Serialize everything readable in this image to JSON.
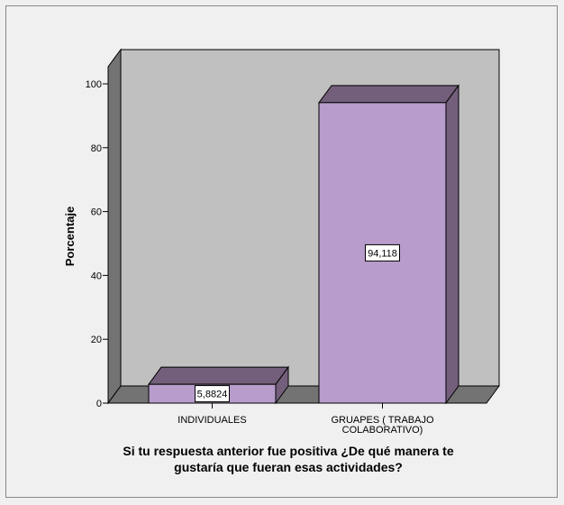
{
  "chart_data": {
    "type": "bar",
    "style": "3d",
    "categories": [
      "INDIVIDUALES",
      "GRUAPES ( TRABAJO COLABORATIVO)"
    ],
    "category_lines": [
      [
        "INDIVIDUALES"
      ],
      [
        "GRUAPES ( TRABAJO",
        "COLABORATIVO)"
      ]
    ],
    "values": [
      5.8824,
      94.118
    ],
    "data_labels": [
      "5,8824",
      "94,118"
    ],
    "xlabel": "Si tu respuesta anterior fue positiva ¿De qué manera te gustaría que fueran esas actividades?",
    "xlabel_lines": [
      "Si tu respuesta anterior fue positiva ¿De qué manera te",
      "gustaría que fueran esas actividades?"
    ],
    "ylabel": "Porcentaje",
    "ylim": [
      0,
      100
    ],
    "yticks": [
      0,
      20,
      40,
      60,
      80,
      100
    ],
    "grid": false,
    "colors": {
      "bar_front": "#b89ccb",
      "bar_top": "#735f7b",
      "bar_side": "#735f7b",
      "back_wall": "#c0c0c0",
      "side_wall": "#737373",
      "floor": "#737373",
      "background": "#f0f0f0"
    }
  }
}
